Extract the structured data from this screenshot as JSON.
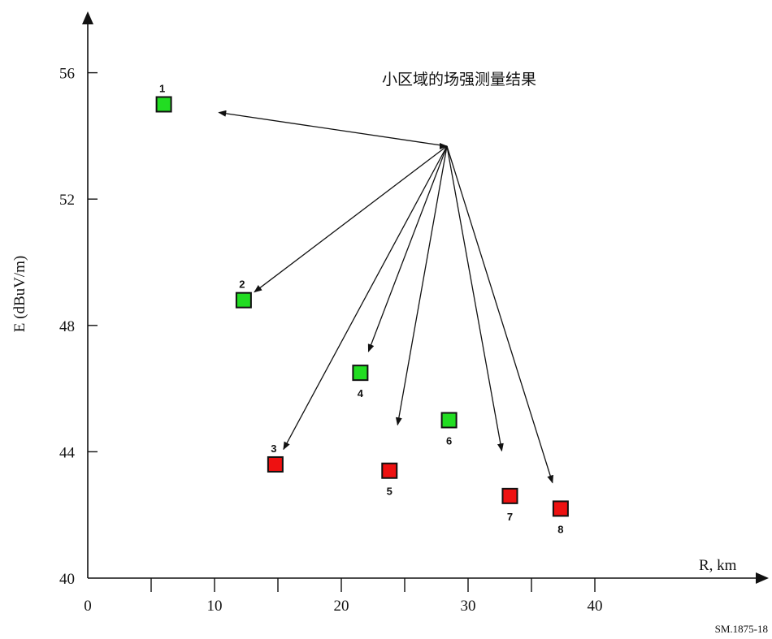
{
  "chart_data": {
    "type": "scatter",
    "title": "",
    "xlabel": "R, km",
    "ylabel": "E (dBuV/m)",
    "xlim": [
      0,
      53
    ],
    "ylim": [
      40,
      58
    ],
    "x_ticks": [
      "0",
      "10",
      "20",
      "30",
      "40"
    ],
    "y_ticks": [
      "40",
      "44",
      "48",
      "52",
      "56"
    ],
    "grid": false,
    "annotation": "小区域的场强测量结果",
    "footer": "SM.1875-18",
    "colors": {
      "green": "#22dd22",
      "red": "#ee1111"
    },
    "points": [
      {
        "label": "1",
        "x": 6.0,
        "y": 55.0,
        "color": "green"
      },
      {
        "label": "2",
        "x": 12.3,
        "y": 48.8,
        "color": "green"
      },
      {
        "label": "3",
        "x": 14.8,
        "y": 43.6,
        "color": "red"
      },
      {
        "label": "4",
        "x": 21.5,
        "y": 46.5,
        "color": "green"
      },
      {
        "label": "5",
        "x": 23.8,
        "y": 43.4,
        "color": "red"
      },
      {
        "label": "6",
        "x": 28.5,
        "y": 45.0,
        "color": "green"
      },
      {
        "label": "7",
        "x": 33.3,
        "y": 42.6,
        "color": "red"
      },
      {
        "label": "8",
        "x": 37.3,
        "y": 42.2,
        "color": "red"
      }
    ]
  }
}
